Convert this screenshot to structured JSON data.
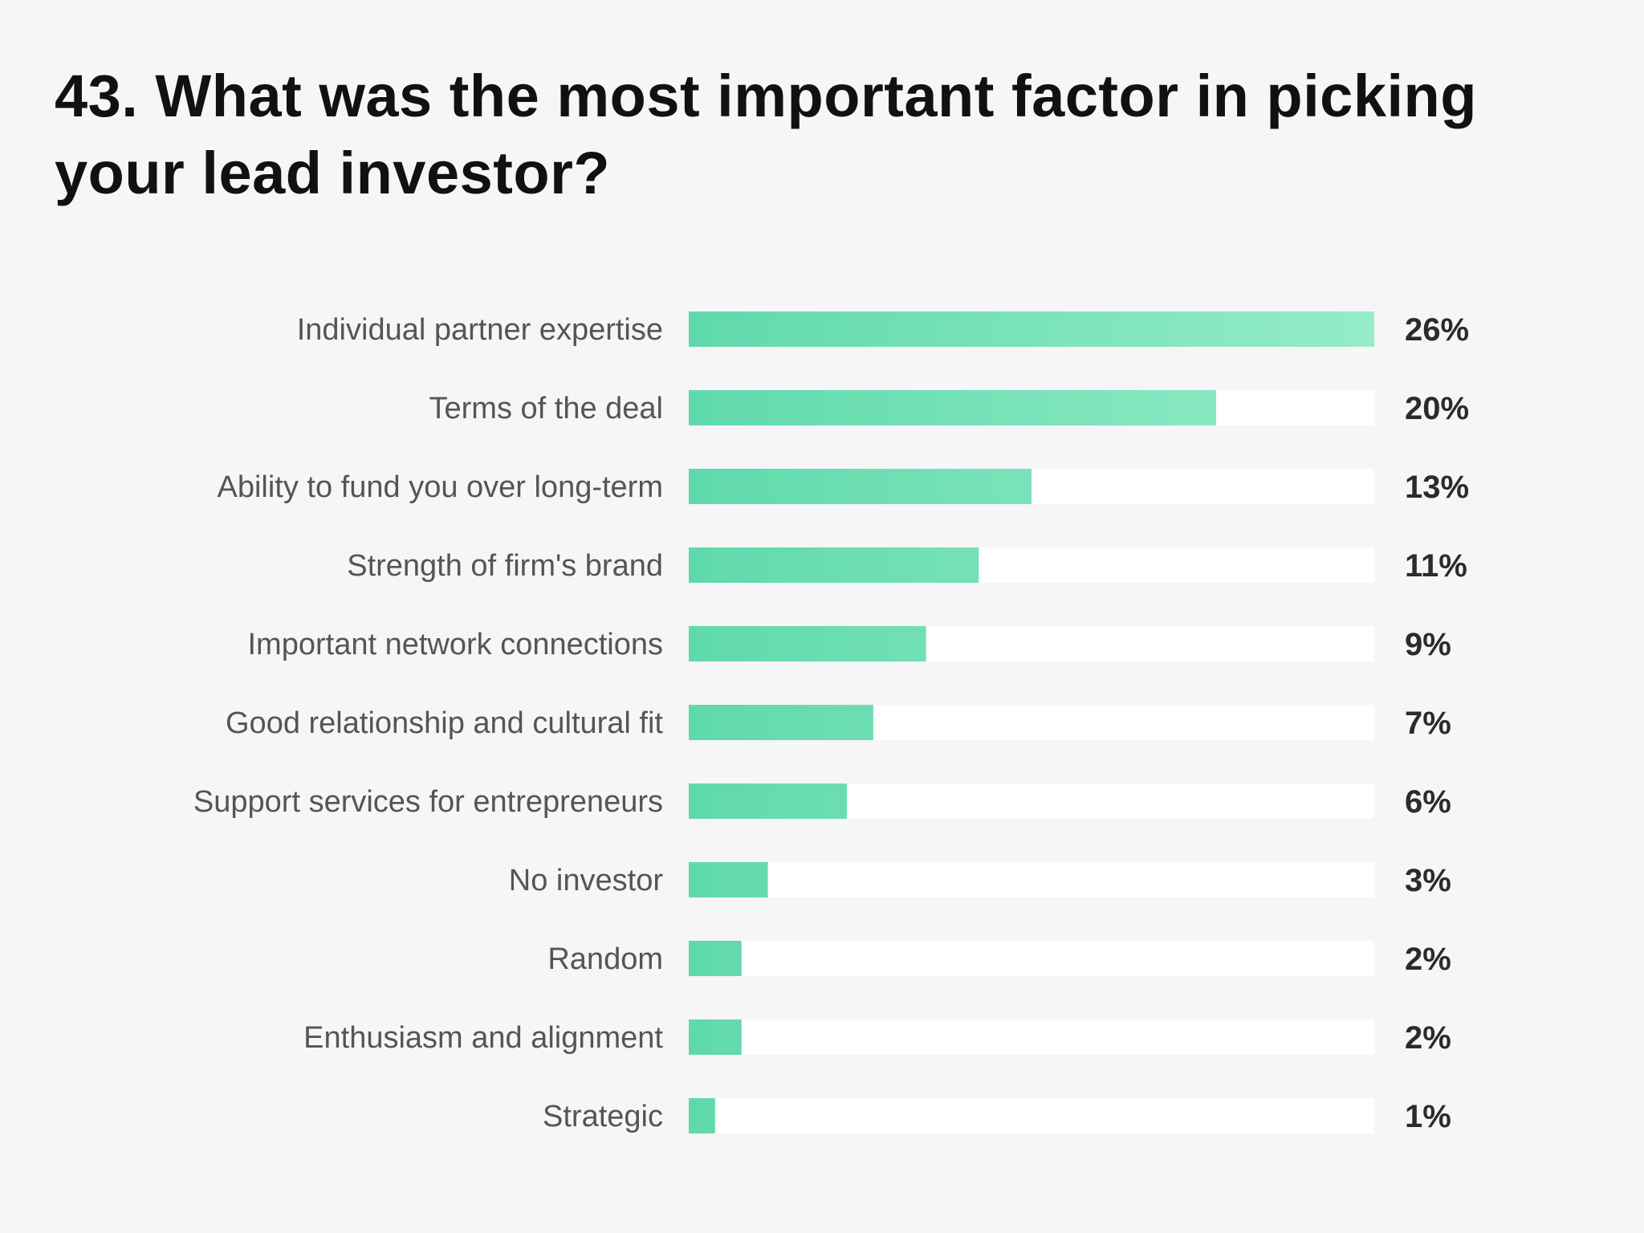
{
  "chart_data": {
    "type": "bar",
    "orientation": "horizontal",
    "title": "43. What was the most important factor in picking your lead investor?",
    "xlabel": "",
    "ylabel": "",
    "xlim": [
      0,
      26
    ],
    "grid": false,
    "legend": "none",
    "value_suffix": "%",
    "categories": [
      "Individual partner expertise",
      "Terms of the deal",
      "Ability to fund you over long-term",
      "Strength of firm's brand",
      "Important network connections",
      "Good relationship and cultural fit",
      "Support services for entrepreneurs",
      "No investor",
      "Random",
      "Enthusiasm and alignment",
      "Strategic"
    ],
    "values": [
      26,
      20,
      13,
      11,
      9,
      7,
      6,
      3,
      2,
      2,
      1
    ],
    "value_labels": [
      "26%",
      "20%",
      "13%",
      "11%",
      "9%",
      "7%",
      "6%",
      "3%",
      "2%",
      "2%",
      "1%"
    ],
    "colors": {
      "bar_start": "#5fd9ab",
      "bar_end": "#95ecc9",
      "track": "#ffffff",
      "background": "#f6f5f8",
      "label": "#555555",
      "value": "#2b2b2b",
      "title": "#111111"
    }
  }
}
